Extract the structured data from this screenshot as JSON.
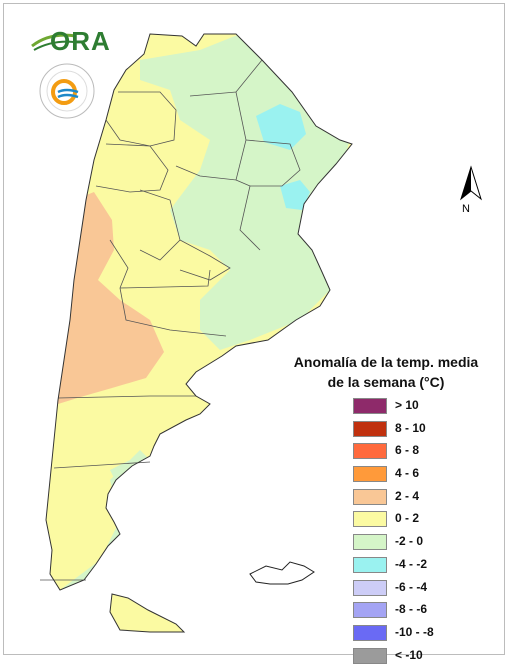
{
  "legend": {
    "title_line1": "Anomalía de la temp. media",
    "title_line2": "de la semana (°C)",
    "items": [
      {
        "label": "> 10",
        "color": "#8e2a6a"
      },
      {
        "label": "8 - 10",
        "color": "#c0310f"
      },
      {
        "label": "6 - 8",
        "color": "#ff6a3d"
      },
      {
        "label": "4 - 6",
        "color": "#ff9a3a"
      },
      {
        "label": "2 - 4",
        "color": "#f9c796"
      },
      {
        "label": "0 - 2",
        "color": "#fbfaa2"
      },
      {
        "label": "-2 - 0",
        "color": "#d5f5c8"
      },
      {
        "label": "-4 - -2",
        "color": "#9af2f0"
      },
      {
        "label": "-6 - -4",
        "color": "#cdcdf7"
      },
      {
        "label": "-8 - -6",
        "color": "#a4a4f4"
      },
      {
        "label": "-10 - -8",
        "color": "#6a6af4"
      },
      {
        "label": "< -10",
        "color": "#9b9b9b"
      }
    ]
  },
  "logo": {
    "text": "ORA"
  },
  "north_arrow": {
    "label": "N"
  }
}
